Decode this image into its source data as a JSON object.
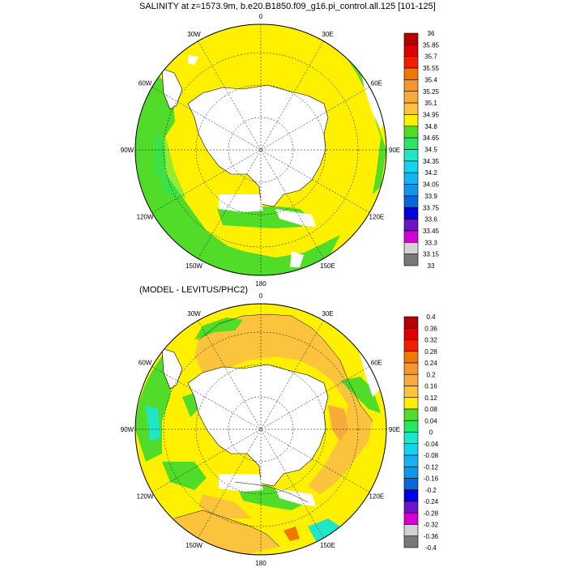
{
  "panels": [
    {
      "title": "SALINITY at z=1573.9m, b.e20.B1850.f09_g16.pi_control.all.125 [101-125]",
      "lon_labels": [
        "0",
        "30E",
        "60E",
        "90E",
        "120E",
        "150E",
        "180",
        "150W",
        "120W",
        "90W",
        "60W",
        "30W"
      ],
      "colorbar": {
        "labels": [
          "36",
          "35.85",
          "35.7",
          "35.55",
          "35.4",
          "35.25",
          "35.1",
          "34.95",
          "34.8",
          "34.65",
          "34.5",
          "34.35",
          "34.2",
          "34.05",
          "33.9",
          "33.75",
          "33.6",
          "33.45",
          "33.3",
          "33.15",
          "33"
        ],
        "colors": [
          "#b40000",
          "#dc0000",
          "#f01e00",
          "#f07800",
          "#f59632",
          "#f9aa3c",
          "#fcc33c",
          "#fff000",
          "#50dc28",
          "#28e664",
          "#20e6c8",
          "#14d2f0",
          "#14b4f0",
          "#0f96e6",
          "#0a64dc",
          "#0000e6",
          "#6e14c8",
          "#d200d2",
          "#d2d2d2",
          "#787878"
        ]
      }
    },
    {
      "title": "(MODEL - LEVITUS/PHC2)",
      "lon_labels": [
        "0",
        "30E",
        "60E",
        "90E",
        "120E",
        "150E",
        "180",
        "150W",
        "120W",
        "90W",
        "60W",
        "30W"
      ],
      "colorbar": {
        "labels": [
          "0.4",
          "0.36",
          "0.32",
          "0.28",
          "0.24",
          "0.2",
          "0.16",
          "0.12",
          "0.08",
          "0.04",
          "0",
          "-0.04",
          "-0.08",
          "-0.12",
          "-0.16",
          "-0.2",
          "-0.24",
          "-0.28",
          "-0.32",
          "-0.36",
          "-0.4"
        ],
        "colors": [
          "#b40000",
          "#dc0000",
          "#f01e00",
          "#f07800",
          "#f59632",
          "#f9aa3c",
          "#fcc33c",
          "#fff000",
          "#50dc28",
          "#28e664",
          "#20e6c8",
          "#14d2f0",
          "#14b4f0",
          "#0f96e6",
          "#0a64dc",
          "#0000e6",
          "#6e14c8",
          "#d200d2",
          "#d2d2d2",
          "#787878"
        ]
      }
    }
  ]
}
